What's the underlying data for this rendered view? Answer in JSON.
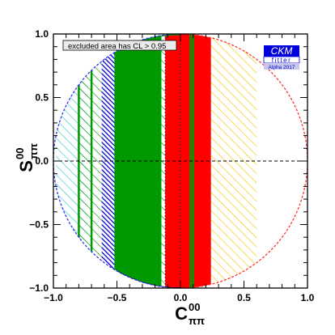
{
  "chart_data": {
    "type": "area",
    "xlabel_main": "C",
    "xlabel_sup": "00",
    "xlabel_sub": "ππ",
    "ylabel_main": "S",
    "ylabel_sup": "00",
    "ylabel_sub": "ππ",
    "xlim": [
      -1.0,
      1.0
    ],
    "ylim": [
      -1.0,
      1.0
    ],
    "x_ticks": [
      "−1.0",
      "−0.5",
      "0.0",
      "0.5",
      "1.0"
    ],
    "y_ticks": [
      "−1.0",
      "−0.5",
      "0.0",
      "0.5",
      "1.0"
    ],
    "legend_text": "excluded area has CL > 0.95",
    "logo": {
      "title": "CKM",
      "subtitle": "fitter",
      "tag": "Alpha 2017"
    },
    "colors": {
      "green": "#009900",
      "red": "#ff0000",
      "blue": "#0000cc",
      "yellow_hatch": "#f5c400",
      "cyan_hatch": "#33cccc",
      "dashed_boundary_red": "#ff3333",
      "dashed_boundary_blue": "#3333ff",
      "logo_blue": "#0000dd",
      "logo_tag_bg": "#c8c8ee"
    },
    "regions": [
      {
        "name": "cyan-hatched",
        "x": [
          -0.98,
          -0.73
        ],
        "style": "hatch",
        "color": "cyan_hatch"
      },
      {
        "name": "green-hatched-left",
        "x": [
          -0.8,
          -0.62
        ],
        "style": "hatch",
        "color": "green"
      },
      {
        "name": "blue-band",
        "x": [
          -0.62,
          -0.5
        ],
        "style": "hatch-dense",
        "color": "blue"
      },
      {
        "name": "green-solid",
        "x": [
          -0.52,
          -0.15
        ],
        "style": "solid",
        "color": "green"
      },
      {
        "name": "green-hatched-mid",
        "x": [
          -0.15,
          0.02
        ],
        "style": "hatch",
        "color": "green"
      },
      {
        "name": "red-solid",
        "x": [
          -0.12,
          0.24
        ],
        "style": "solid",
        "color": "red"
      },
      {
        "name": "yellow-hatched",
        "x": [
          0.24,
          0.6
        ],
        "style": "hatch",
        "color": "yellow_hatch"
      }
    ],
    "vertical_lines": [
      -0.8,
      -0.7,
      -0.12,
      0.0,
      0.08,
      0.1
    ],
    "dashed_zero_line_y": 0.0
  }
}
